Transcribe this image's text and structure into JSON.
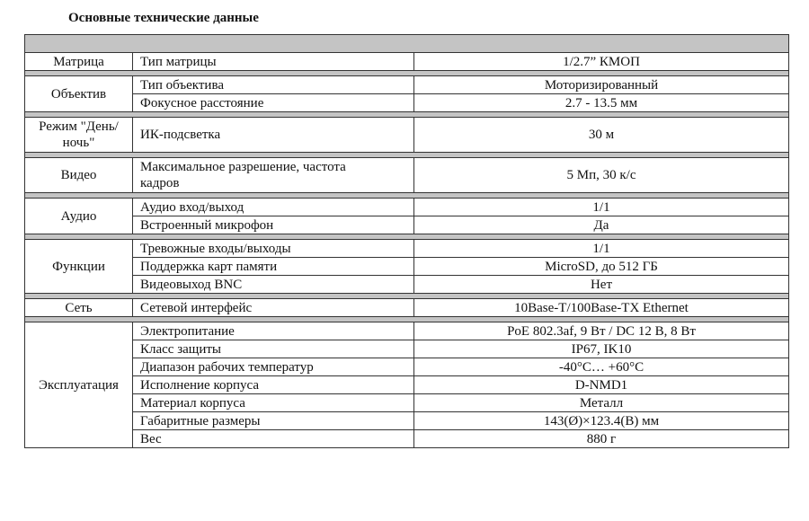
{
  "title": "Основные технические данные",
  "groups": [
    {
      "name": "Матрица",
      "rows": [
        [
          "Тип матрицы",
          "1/2.7” КМОП"
        ]
      ]
    },
    {
      "name": "Объектив",
      "rows": [
        [
          "Тип объектива",
          "Моторизированный"
        ],
        [
          "Фокусное расстояние",
          "2.7 - 13.5 мм"
        ]
      ]
    },
    {
      "name": "Режим \"День/ночь\"",
      "rows": [
        [
          "ИК-подсветка",
          "30 м"
        ]
      ],
      "tall": true
    },
    {
      "name": "Видео",
      "rows": [
        [
          "Максимальное разрешение, частота кадров",
          "5 Мп, 30 к/с"
        ]
      ],
      "tall": true
    },
    {
      "name": "Аудио",
      "rows": [
        [
          "Аудио вход/выход",
          "1/1"
        ],
        [
          "Встроенный микрофон",
          "Да"
        ]
      ]
    },
    {
      "name": "Функции",
      "rows": [
        [
          "Тревожные входы/выходы",
          "1/1"
        ],
        [
          "Поддержка карт памяти",
          "MicroSD, до 512 ГБ"
        ],
        [
          "Видеовыход BNC",
          "Нет"
        ]
      ]
    },
    {
      "name": "Сеть",
      "rows": [
        [
          "Сетевой интерфейс",
          "10Base-T/100Base-TX Ethernet"
        ]
      ]
    },
    {
      "name": "Эксплуатация",
      "rows": [
        [
          "Электропитание",
          "PoE 802.3af, 9 Вт / DC 12 В, 8 Вт"
        ],
        [
          "Класс защиты",
          "IP67, IK10"
        ],
        [
          "Диапазон рабочих температур",
          "-40°C… +60°C"
        ],
        [
          "Исполнение корпуса",
          "D-NMD1"
        ],
        [
          "Материал корпуса",
          "Металл"
        ],
        [
          "Габаритные размеры",
          "143(Ø)×123.4(В) мм"
        ],
        [
          "Вес",
          "880  г"
        ]
      ]
    }
  ]
}
